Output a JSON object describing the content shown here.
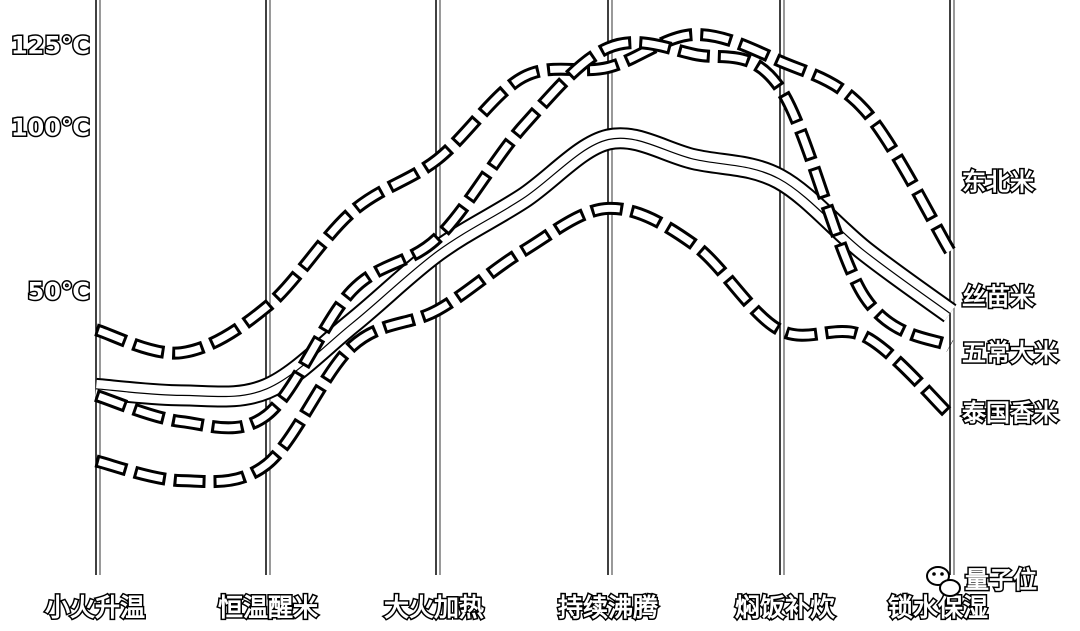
{
  "chart_data": {
    "type": "line",
    "y_ticks": [
      {
        "value": 125,
        "label": "125℃"
      },
      {
        "value": 100,
        "label": "100℃"
      },
      {
        "value": 50,
        "label": "50℃"
      }
    ],
    "categories": [
      "小火升温",
      "恒温醒米",
      "大火加热",
      "持续沸腾",
      "焖饭补炊",
      "锁水保湿"
    ],
    "x": [
      0,
      0.5,
      1,
      1.5,
      2,
      2.5,
      3,
      3.5,
      4,
      4.5,
      5
    ],
    "series": [
      {
        "name": "东北米",
        "style": "dashed",
        "values": [
          38,
          31,
          45,
          74,
          90,
          115,
          118,
          128,
          120,
          105,
          62
        ]
      },
      {
        "name": "丝苗米",
        "style": "solid",
        "values": [
          20,
          18,
          20,
          40,
          62,
          78,
          96,
          90,
          84,
          62,
          43
        ]
      },
      {
        "name": "五常大米",
        "style": "dashed",
        "values": [
          18,
          10,
          12,
          50,
          66,
          100,
          124,
          122,
          112,
          48,
          33
        ]
      },
      {
        "name": "泰国香米",
        "style": "dashed",
        "values": [
          -2,
          -8,
          -3,
          33,
          44,
          62,
          75,
          64,
          38,
          36,
          12
        ]
      }
    ],
    "ylim": [
      -20,
      130
    ]
  },
  "watermark": {
    "text": "量子位",
    "icon": "wechat-icon"
  }
}
